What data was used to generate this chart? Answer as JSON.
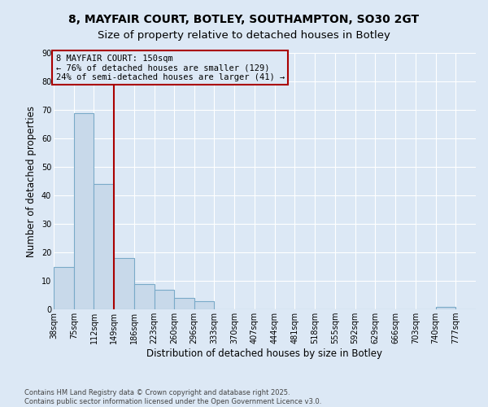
{
  "title_line1": "8, MAYFAIR COURT, BOTLEY, SOUTHAMPTON, SO30 2GT",
  "title_line2": "Size of property relative to detached houses in Botley",
  "xlabel": "Distribution of detached houses by size in Botley",
  "ylabel": "Number of detached properties",
  "footnote1": "Contains HM Land Registry data © Crown copyright and database right 2025.",
  "footnote2": "Contains public sector information licensed under the Open Government Licence v3.0.",
  "bin_labels": [
    "38sqm",
    "75sqm",
    "112sqm",
    "149sqm",
    "186sqm",
    "223sqm",
    "260sqm",
    "296sqm",
    "333sqm",
    "370sqm",
    "407sqm",
    "444sqm",
    "481sqm",
    "518sqm",
    "555sqm",
    "592sqm",
    "629sqm",
    "666sqm",
    "703sqm",
    "740sqm",
    "777sqm"
  ],
  "bin_edges": [
    38,
    75,
    112,
    149,
    186,
    223,
    260,
    296,
    333,
    370,
    407,
    444,
    481,
    518,
    555,
    592,
    629,
    666,
    703,
    740,
    777,
    814
  ],
  "bar_heights": [
    15,
    69,
    44,
    18,
    9,
    7,
    4,
    3,
    0,
    0,
    0,
    0,
    0,
    0,
    0,
    0,
    0,
    0,
    0,
    1,
    0
  ],
  "bar_color": "#c8d9ea",
  "bar_edge_color": "#7aaac8",
  "property_size": 149,
  "vline_color": "#aa0000",
  "annotation_text": "8 MAYFAIR COURT: 150sqm\n← 76% of detached houses are smaller (129)\n24% of semi-detached houses are larger (41) →",
  "annotation_box_color": "#aa0000",
  "ylim": [
    0,
    90
  ],
  "yticks": [
    0,
    10,
    20,
    30,
    40,
    50,
    60,
    70,
    80,
    90
  ],
  "background_color": "#dce8f5",
  "grid_color": "#ffffff",
  "title_fontsize": 10,
  "subtitle_fontsize": 9.5,
  "axis_fontsize": 8.5,
  "tick_fontsize": 7,
  "annotation_fontsize": 7.5
}
